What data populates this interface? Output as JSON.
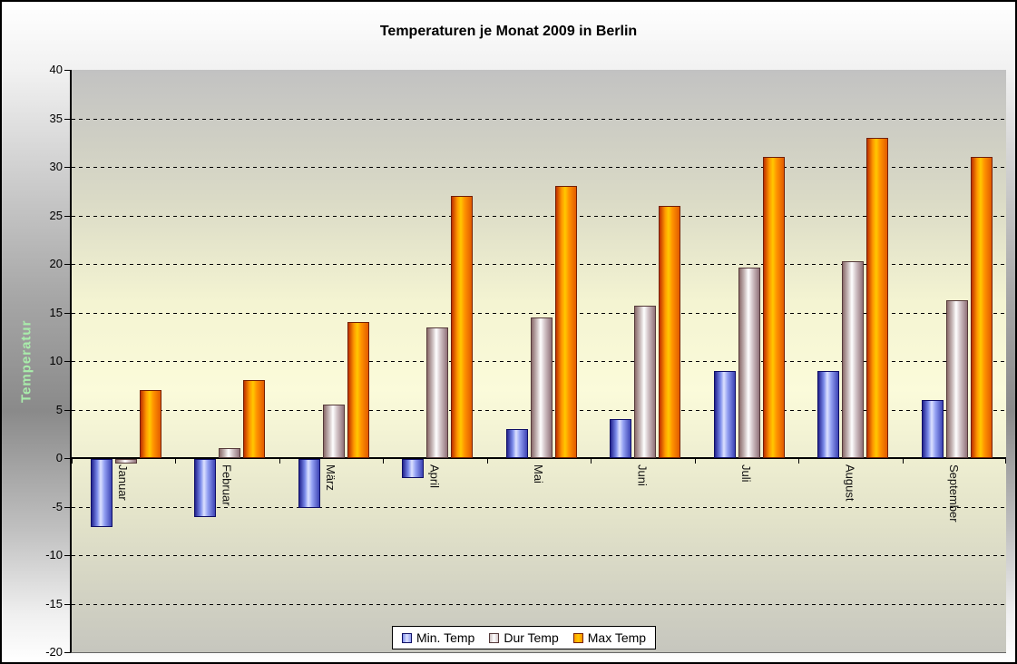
{
  "chart_data": {
    "type": "bar",
    "title": "Temperaturen je Monat 2009 in Berlin",
    "ylabel": "Temperatur",
    "xlabel": "",
    "categories": [
      "Januar",
      "Februar",
      "März",
      "April",
      "Mai",
      "Juni",
      "Juli",
      "August",
      "September"
    ],
    "series": [
      {
        "name": "Min. Temp",
        "values": [
          -7,
          -6,
          -5,
          -2,
          3,
          4,
          9,
          9,
          6
        ],
        "gradient": [
          "#23238f",
          "#7b8bea",
          "#dce1ff",
          "#93a0f2",
          "#3d44b5"
        ],
        "border": "#0f0f66"
      },
      {
        "name": "Dur Temp",
        "values": [
          -0.5,
          1,
          5.5,
          13.5,
          14.5,
          15.7,
          19.6,
          20.3,
          16.3
        ],
        "gradient": [
          "#8a6a6a",
          "#cfc2c2",
          "#ffffff",
          "#d6c9cc",
          "#917179"
        ],
        "border": "#553a3a"
      },
      {
        "name": "Max Temp",
        "values": [
          7,
          8,
          14,
          27,
          28,
          26,
          31,
          33,
          31
        ],
        "gradient": [
          "#bf3000",
          "#ff9900",
          "#ffc800",
          "#ff9300",
          "#e25b00"
        ],
        "border": "#732000"
      }
    ],
    "ylim": [
      -20,
      40
    ],
    "yticks": [
      40,
      35,
      30,
      25,
      20,
      15,
      10,
      5,
      0,
      -5,
      -10,
      -15,
      -20
    ],
    "grid": "dashed horizontal",
    "legend_position": "bottom",
    "ylabel_color": "#a9edab"
  }
}
